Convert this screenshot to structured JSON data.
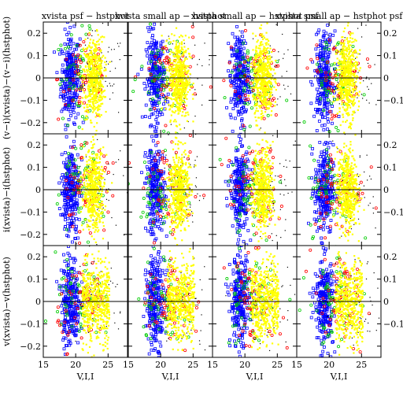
{
  "chart_data": {
    "type": "scatter",
    "column_titles": [
      "xvista psf − hstphot",
      "xvista small ap − hstphot",
      "xvista small ap − hstphot psf",
      "xvista small ap − hstphot psf"
    ],
    "row_ylabels": [
      "(v−i)(xvista)−(v−i)(hstphot)",
      "i(xvista)−i(hstphot)",
      "v(xvista)−v(hstphot)"
    ],
    "xlabel": "V,I,I",
    "xlim": [
      15,
      28
    ],
    "ylim": [
      -0.25,
      0.25
    ],
    "xticks": [
      15,
      20,
      25
    ],
    "yticks": [
      -0.2,
      -0.1,
      0,
      0.1,
      0.2
    ],
    "ytick_labels": [
      "−0.2",
      "−0.1",
      "0",
      "0.1",
      "0.2"
    ],
    "right_ytick_labels": [
      "−0.1",
      "0",
      "0.1",
      "0.2"
    ],
    "reference_line_y": 0,
    "point_colors": [
      "#ffff00",
      "#0000ff",
      "#00cc00",
      "#ff0000",
      "#000000"
    ],
    "series": [
      {
        "color": "#ffff00",
        "x_center": 22.8,
        "x_spread": 1.3
      },
      {
        "color": "#0000ff",
        "x_center": 19.2,
        "x_spread": 1.2
      },
      {
        "color": "#00cc00",
        "x_center": 20.5,
        "x_spread": 3.0
      },
      {
        "color": "#ff0000",
        "x_center": 21.5,
        "x_spread": 3.5
      },
      {
        "color": "#000000",
        "x_center": 23.5,
        "x_spread": 3.5
      }
    ]
  }
}
